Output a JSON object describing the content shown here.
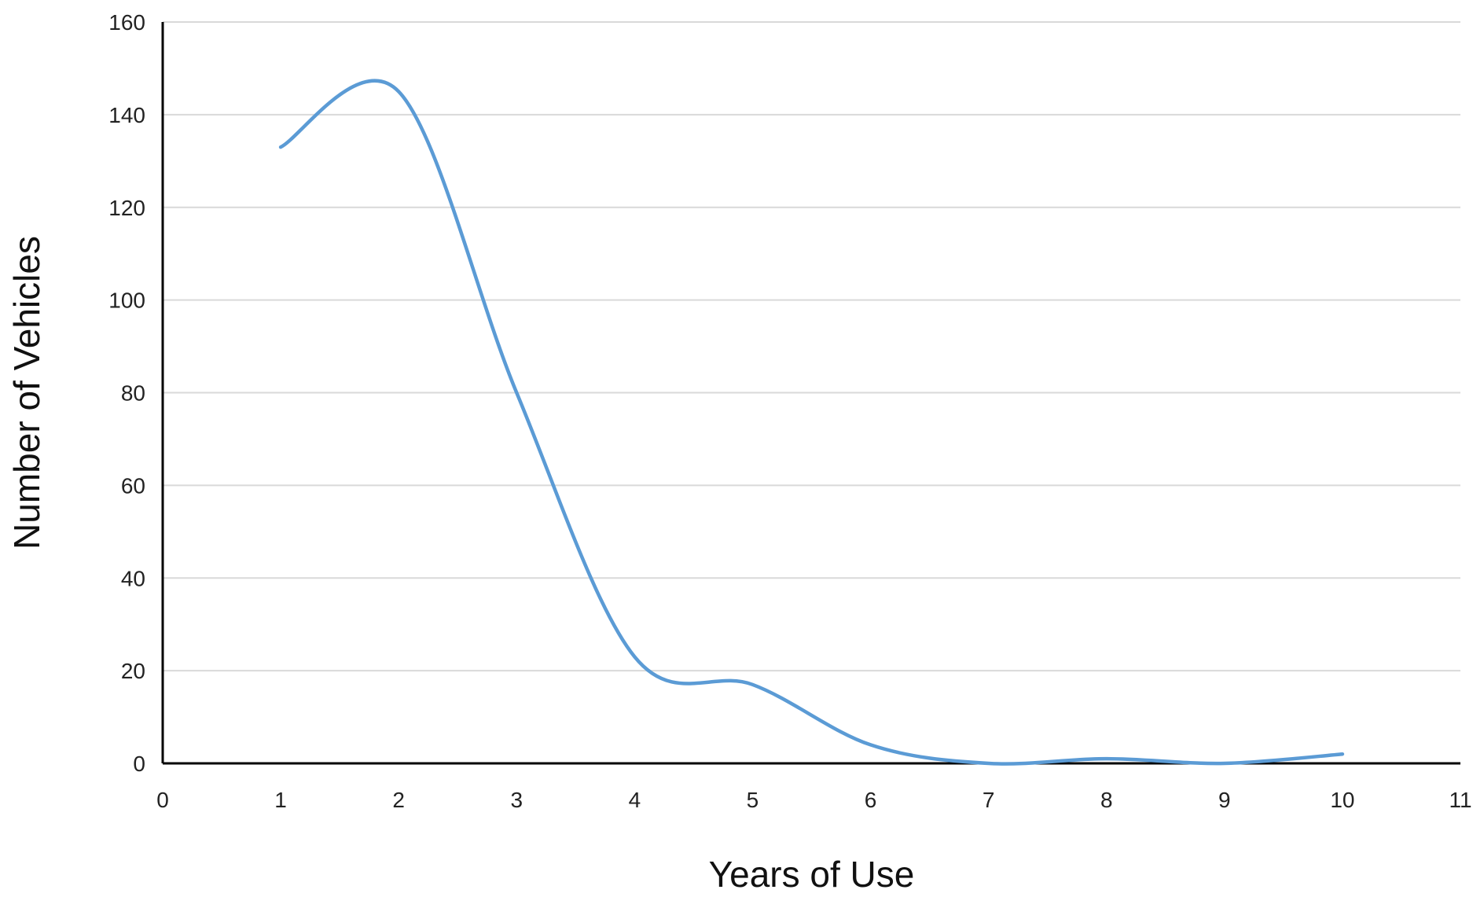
{
  "chart_data": {
    "type": "line",
    "title": "",
    "xlabel": "Years of Use",
    "ylabel": "Number of Vehicles",
    "xlim": [
      0,
      11
    ],
    "ylim": [
      0,
      160
    ],
    "x_ticks": [
      0,
      1,
      2,
      3,
      4,
      5,
      6,
      7,
      8,
      9,
      10,
      11
    ],
    "y_ticks": [
      0,
      20,
      40,
      60,
      80,
      100,
      120,
      140,
      160
    ],
    "grid": "horizontal",
    "smooth": true,
    "legend": "none",
    "series": [
      {
        "color": "#5b9bd5",
        "x": [
          1,
          2,
          3,
          4,
          5,
          6,
          7,
          8,
          9,
          10
        ],
        "values": [
          133,
          145,
          80,
          23,
          17,
          4,
          0,
          1,
          0,
          2
        ]
      }
    ]
  }
}
